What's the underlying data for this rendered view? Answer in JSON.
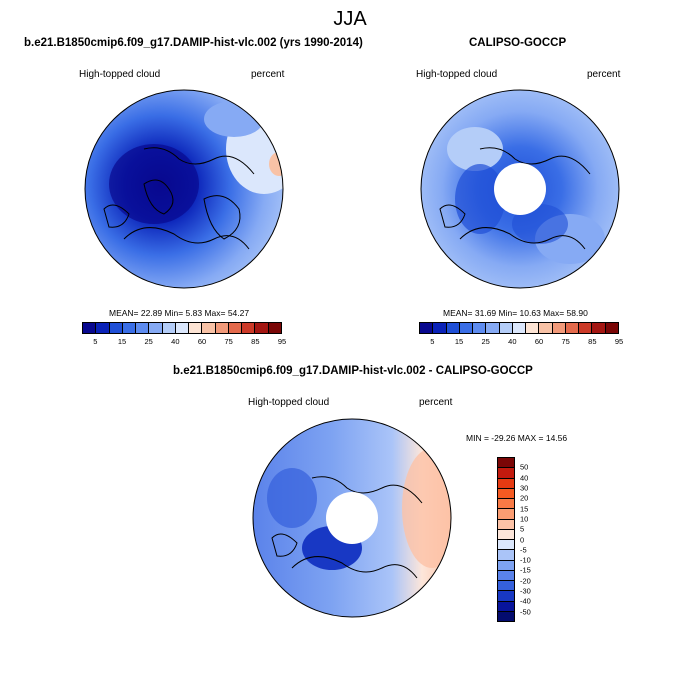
{
  "figure": {
    "title": "JJA"
  },
  "panel_model": {
    "title": "b.e21.B1850cmip6.f09_g17.DAMIP-hist-vlc.002 (yrs 1990-2014)",
    "left_label": "High-topped cloud",
    "right_label": "percent",
    "stats": "MEAN=  22.89  Min=   5.83  Max=  54.27",
    "colorbar_ticks": [
      "5",
      "15",
      "25",
      "40",
      "60",
      "75",
      "85",
      "95"
    ]
  },
  "panel_obs": {
    "title": "CALIPSO-GOCCP",
    "left_label": "High-topped cloud",
    "right_label": "percent",
    "stats": "MEAN=  31.69  Min=  10.63  Max=  58.90",
    "colorbar_ticks": [
      "5",
      "15",
      "25",
      "40",
      "60",
      "75",
      "85",
      "95"
    ]
  },
  "panel_diff": {
    "title": "b.e21.B1850cmip6.f09_g17.DAMIP-hist-vlc.002 - CALIPSO-GOCCP",
    "left_label": "High-topped cloud",
    "right_label": "percent",
    "stats": "MIN = -29.26 MAX =  14.56",
    "colorbar_ticks": [
      "50",
      "40",
      "30",
      "20",
      "15",
      "10",
      "5",
      "0",
      "-5",
      "-10",
      "-15",
      "-20",
      "-30",
      "-40",
      "-50"
    ]
  },
  "colors": {
    "abs_scale": [
      "#08088f",
      "#0a22b8",
      "#1f4fd6",
      "#3a6ee6",
      "#5e8cf0",
      "#86aaf4",
      "#b4cdf8",
      "#dbe7fc",
      "#fde4d4",
      "#f8c2a6",
      "#f29a7a",
      "#e46a4c",
      "#cc3a28",
      "#a41612",
      "#7a0606"
    ],
    "diff_scale": [
      "#7a0606",
      "#c21a0e",
      "#e63a12",
      "#f55a22",
      "#f97a46",
      "#fb9d72",
      "#fcc2a6",
      "#fde6da",
      "#dbe7fc",
      "#aac4f8",
      "#7ea3f2",
      "#5a82ea",
      "#3560dc",
      "#1838c4",
      "#08149c",
      "#040c6e"
    ]
  }
}
